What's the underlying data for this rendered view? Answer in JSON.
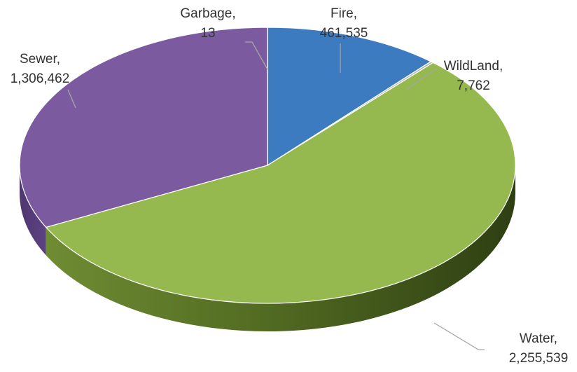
{
  "chart_data": {
    "type": "pie",
    "title": "",
    "legend": "none",
    "categories": [
      "Fire",
      "WildLand",
      "Water",
      "Sewer",
      "Garbage"
    ],
    "values": [
      461535,
      7762,
      2255539,
      1306462,
      13
    ],
    "colors": [
      "#3c7bc0",
      "#b5b5b5",
      "#95b94e",
      "#7b5aa0",
      "#bfbfbf"
    ],
    "labels": [
      {
        "category": "Fire",
        "name": "Fire,",
        "value": "461,535"
      },
      {
        "category": "WildLand",
        "name": "WildLand,",
        "value": "7,762"
      },
      {
        "category": "Water",
        "name": "Water,",
        "value": "2,255,539"
      },
      {
        "category": "Sewer",
        "name": "Sewer,",
        "value": "1,306,462"
      },
      {
        "category": "Garbage",
        "name": "Garbage,",
        "value": "13"
      }
    ]
  }
}
